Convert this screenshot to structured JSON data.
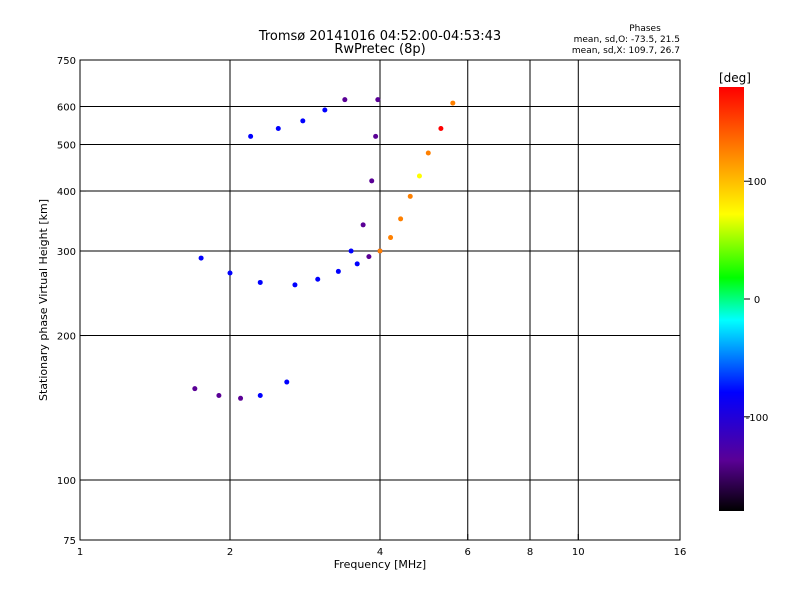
{
  "chart_data": {
    "type": "scatter",
    "title": "Tromsø 20141016 04:52:00-04:53:43",
    "subtitle": "RwPretec (8p)",
    "xlabel": "Frequency [MHz]",
    "ylabel": "Stationary phase Virtual Height [km]",
    "x_scale": "log",
    "y_scale": "log",
    "xlim": [
      1,
      16
    ],
    "ylim": [
      75,
      750
    ],
    "x_ticks": [
      1,
      2,
      4,
      6,
      8,
      10,
      16
    ],
    "y_ticks": [
      75,
      100,
      200,
      300,
      400,
      500,
      600,
      750
    ],
    "grid": true,
    "colorbar": {
      "label": "[deg]",
      "range": [
        -180,
        180
      ],
      "ticks": [
        100,
        0,
        -100
      ],
      "colors": [
        "#000000",
        "#5a0096",
        "#0000ff",
        "#00ffff",
        "#00ff00",
        "#ffff00",
        "#ff8000",
        "#ff0000"
      ]
    },
    "stats": {
      "heading": "Phases",
      "line_o": "mean, sd,O: -73.5, 21.5",
      "line_x": "mean, sd,X: 109.7, 26.7"
    },
    "traces": [
      {
        "x": [
          1.75,
          2.0,
          2.3,
          2.7,
          3.0,
          3.3,
          3.6,
          3.8,
          4.0
        ],
        "y": [
          290,
          270,
          258,
          255,
          262,
          272,
          282,
          292,
          300
        ],
        "phase": [
          -80,
          -60,
          -85,
          -70,
          -90,
          -95,
          -100,
          -105,
          -90
        ]
      },
      {
        "x": [
          3.5,
          3.7,
          3.85,
          3.92,
          3.96
        ],
        "y": [
          300,
          340,
          420,
          520,
          620
        ],
        "phase": [
          -100,
          -110,
          -115,
          -120,
          -110
        ]
      },
      {
        "x": [
          4.0,
          4.2,
          4.4,
          4.6,
          4.8,
          5.0,
          5.3,
          5.6
        ],
        "y": [
          300,
          320,
          350,
          390,
          430,
          480,
          540,
          610
        ],
        "phase": [
          130,
          140,
          120,
          110,
          100,
          150,
          160,
          120
        ]
      },
      {
        "x": [
          1.7,
          1.9,
          2.1,
          2.3,
          2.6
        ],
        "y": [
          155,
          150,
          148,
          150,
          160
        ],
        "phase": [
          -110,
          -115,
          -120,
          -100,
          -95
        ]
      },
      {
        "x": [
          2.2,
          2.5,
          2.8,
          3.1,
          3.4
        ],
        "y": [
          520,
          540,
          560,
          590,
          620
        ],
        "phase": [
          -85,
          -95,
          -90,
          -100,
          -110
        ]
      }
    ]
  }
}
